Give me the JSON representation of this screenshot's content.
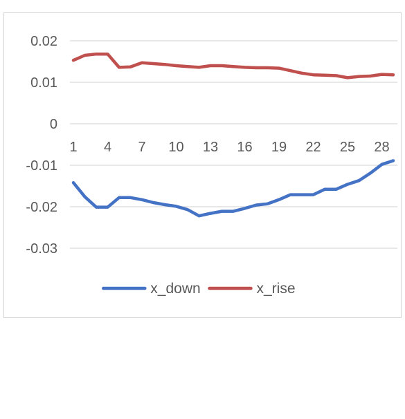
{
  "chart_data": {
    "type": "line",
    "title": "",
    "xlabel": "",
    "ylabel": "",
    "x": [
      1,
      2,
      3,
      4,
      5,
      6,
      7,
      8,
      9,
      10,
      11,
      12,
      13,
      14,
      15,
      16,
      17,
      18,
      19,
      20,
      21,
      22,
      23,
      24,
      25,
      26,
      27,
      28,
      29
    ],
    "x_tick_labels": [
      "1",
      "4",
      "7",
      "10",
      "13",
      "16",
      "19",
      "22",
      "25",
      "28"
    ],
    "y_tick_labels": [
      "0.02",
      "0.01",
      "0",
      "-0.01",
      "-0.02",
      "-0.03"
    ],
    "y_ticks": [
      0.02,
      0.01,
      0,
      -0.01,
      -0.02,
      -0.03
    ],
    "ylim": [
      -0.03,
      0.02
    ],
    "grid": true,
    "legend_position": "bottom",
    "series": [
      {
        "name": "x_down",
        "color": "#4472c4",
        "values": [
          -0.0142,
          -0.0176,
          -0.0201,
          -0.0201,
          -0.0178,
          -0.0178,
          -0.0183,
          -0.019,
          -0.0195,
          -0.0199,
          -0.0207,
          -0.0222,
          -0.0216,
          -0.0211,
          -0.0211,
          -0.0204,
          -0.0196,
          -0.0193,
          -0.0183,
          -0.0171,
          -0.0171,
          -0.0171,
          -0.0158,
          -0.0158,
          -0.0146,
          -0.0137,
          -0.0119,
          -0.0098,
          -0.0089
        ]
      },
      {
        "name": "x_rise",
        "color": "#c0504d",
        "values": [
          0.0153,
          0.0165,
          0.0168,
          0.0168,
          0.0136,
          0.0137,
          0.0147,
          0.0145,
          0.0143,
          0.014,
          0.0138,
          0.0136,
          0.014,
          0.014,
          0.0138,
          0.0136,
          0.0135,
          0.0135,
          0.0134,
          0.0128,
          0.0122,
          0.0118,
          0.0117,
          0.0116,
          0.0111,
          0.0114,
          0.0115,
          0.0119,
          0.0118
        ]
      }
    ]
  }
}
